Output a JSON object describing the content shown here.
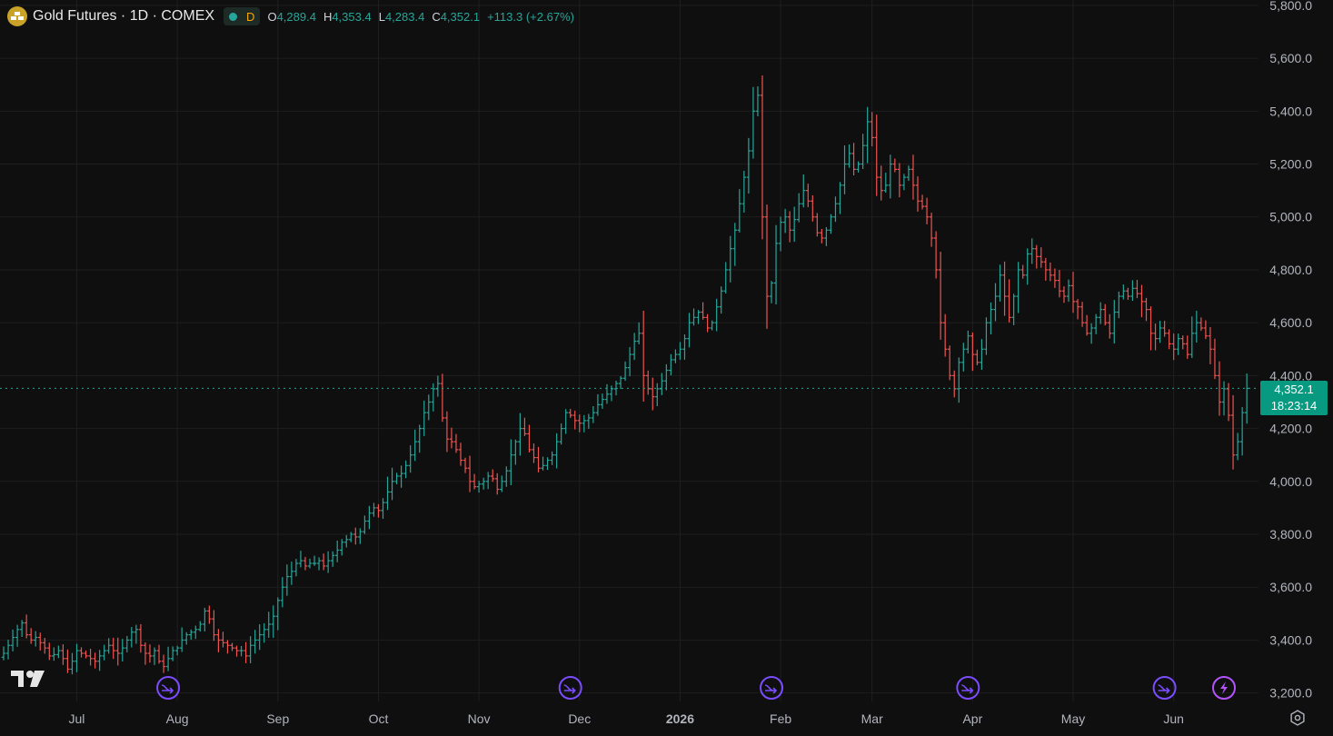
{
  "header": {
    "symbol_title": "Gold Futures · 1D · COMEX",
    "interval_badge": "D",
    "open_label": "O",
    "open_value": "4,289.4",
    "high_label": "H",
    "high_value": "4,353.4",
    "low_label": "L",
    "low_value": "4,283.4",
    "close_label": "C",
    "close_value": "4,352.1",
    "change": "+113.3 (+2.67%)"
  },
  "price_label": {
    "price": "4,352.1",
    "countdown": "18:23:14"
  },
  "colors": {
    "up": "#26a69a",
    "down": "#ef5350",
    "background": "#0f0f0f",
    "grid": "#1f1f1f",
    "event_marker": "#7b4dff",
    "price_box": "#089981"
  },
  "icons": {
    "logo": "gold-bars-icon",
    "tv_logo": "tradingview-logo-icon",
    "event": "dividend-arrow-icon",
    "flash": "lightning-icon",
    "settings": "gear-icon"
  },
  "chart_data": {
    "type": "ohlc-bar",
    "title": "Gold Futures · 1D · COMEX",
    "y_axis": {
      "ticks": [
        "3,200.0",
        "3,400.0",
        "3,600.0",
        "3,800.0",
        "4,000.0",
        "4,200.0",
        "4,400.0",
        "4,600.0",
        "4,800.0",
        "5,000.0",
        "5,200.0",
        "5,400.0",
        "5,600.0",
        "5,800.0"
      ],
      "tick_values": [
        3200,
        3400,
        3600,
        3800,
        4000,
        4200,
        4400,
        4600,
        4800,
        5000,
        5200,
        5400,
        5600,
        5800
      ],
      "range": [
        3185,
        5810
      ]
    },
    "x_axis": {
      "labels": [
        "Jul",
        "Aug",
        "Sep",
        "Oct",
        "Nov",
        "Dec",
        "2026",
        "Feb",
        "Mar",
        "Apr",
        "May",
        "Jun"
      ],
      "label_bars": [
        16,
        38,
        60,
        82,
        104,
        126,
        148,
        170,
        190,
        212,
        234,
        256
      ]
    },
    "last_price": 4352.1,
    "event_markers": [
      {
        "bar": 36,
        "kind": "event"
      },
      {
        "bar": 124,
        "kind": "event"
      },
      {
        "bar": 168,
        "kind": "event"
      },
      {
        "bar": 211,
        "kind": "event"
      },
      {
        "bar": 254,
        "kind": "event"
      },
      {
        "bar": 267,
        "kind": "flash"
      }
    ],
    "closes": [
      3350,
      3380,
      3410,
      3440,
      3465,
      3420,
      3400,
      3410,
      3390,
      3370,
      3340,
      3345,
      3360,
      3330,
      3290,
      3320,
      3360,
      3350,
      3340,
      3330,
      3320,
      3340,
      3360,
      3380,
      3360,
      3350,
      3370,
      3400,
      3430,
      3440,
      3380,
      3350,
      3340,
      3360,
      3320,
      3300,
      3330,
      3360,
      3370,
      3400,
      3420,
      3430,
      3440,
      3460,
      3510,
      3480,
      3420,
      3400,
      3390,
      3380,
      3370,
      3360,
      3360,
      3340,
      3380,
      3400,
      3420,
      3440,
      3460,
      3490,
      3550,
      3600,
      3640,
      3660,
      3690,
      3700,
      3680,
      3690,
      3690,
      3700,
      3680,
      3700,
      3720,
      3740,
      3770,
      3780,
      3800,
      3790,
      3810,
      3850,
      3880,
      3900,
      3890,
      3920,
      3960,
      4000,
      4020,
      4030,
      4060,
      4100,
      4150,
      4200,
      4260,
      4300,
      4350,
      4370,
      4240,
      4160,
      4150,
      4120,
      4080,
      4050,
      4000,
      3980,
      3990,
      4000,
      4020,
      4010,
      3970,
      4000,
      4040,
      4100,
      4150,
      4200,
      4180,
      4120,
      4090,
      4050,
      4060,
      4080,
      4100,
      4150,
      4200,
      4260,
      4250,
      4230,
      4220,
      4230,
      4240,
      4260,
      4290,
      4310,
      4330,
      4350,
      4370,
      4390,
      4430,
      4480,
      4530,
      4560,
      4400,
      4350,
      4320,
      4350,
      4380,
      4420,
      4460,
      4480,
      4500,
      4540,
      4600,
      4620,
      4640,
      4620,
      4580,
      4600,
      4660,
      4720,
      4800,
      4880,
      4950,
      5050,
      5150,
      5250,
      5400,
      5460,
      5000,
      4700,
      4750,
      4900,
      4980,
      5000,
      4950,
      4990,
      5050,
      5100,
      5060,
      5000,
      4940,
      4920,
      4950,
      5000,
      5050,
      5120,
      5200,
      5240,
      5180,
      5200,
      5270,
      5360,
      5300,
      5150,
      5100,
      5120,
      5200,
      5180,
      5120,
      5150,
      5180,
      5120,
      5060,
      5040,
      5000,
      4920,
      4800,
      4600,
      4500,
      4400,
      4350,
      4450,
      4500,
      4550,
      4480,
      4450,
      4500,
      4600,
      4650,
      4700,
      4780,
      4700,
      4620,
      4700,
      4800,
      4780,
      4860,
      4880,
      4850,
      4830,
      4800,
      4780,
      4760,
      4720,
      4700,
      4740,
      4680,
      4660,
      4600,
      4560,
      4580,
      4620,
      4650,
      4600,
      4560,
      4640,
      4700,
      4720,
      4700,
      4730,
      4710,
      4680,
      4650,
      4560,
      4540,
      4580,
      4560,
      4520,
      4500,
      4540,
      4520,
      4480,
      4560,
      4600,
      4580,
      4550,
      4500,
      4400,
      4300,
      4350,
      4250,
      4100,
      4150,
      4260,
      4352
    ]
  }
}
